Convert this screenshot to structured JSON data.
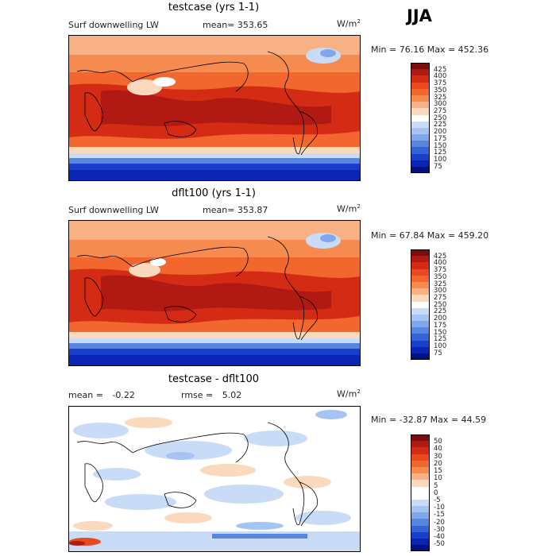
{
  "season": "JJA",
  "unit_base": "W/m",
  "unit_exp": "2",
  "panels": [
    {
      "title": "testcase (yrs 1-1)",
      "left_label": "Surf downwelling LW",
      "stat_label": "mean=",
      "stat_value": "353.65",
      "minmax": "Min =  76.16 Max = 452.36",
      "colorbar": {
        "colors": [
          "#7a0d0d",
          "#b11a12",
          "#d42c14",
          "#e8491d",
          "#f1672d",
          "#f58b4f",
          "#f8b184",
          "#fbd9bc",
          "#ffffff",
          "#c9dcf7",
          "#a6c4f2",
          "#80a7ea",
          "#5885df",
          "#3363d5",
          "#1b3fca",
          "#0a24b6",
          "#03107f"
        ],
        "labels": [
          "425",
          "400",
          "375",
          "350",
          "325",
          "300",
          "275",
          "250",
          "225",
          "200",
          "175",
          "150",
          "125",
          "100",
          "75"
        ]
      }
    },
    {
      "title": "dflt100 (yrs 1-1)",
      "left_label": "Surf downwelling LW",
      "stat_label": "mean=",
      "stat_value": "353.87",
      "minmax": "Min =  67.84 Max = 459.20",
      "colorbar": {
        "colors": [
          "#7a0d0d",
          "#b11a12",
          "#d42c14",
          "#e8491d",
          "#f1672d",
          "#f58b4f",
          "#f8b184",
          "#fbd9bc",
          "#ffffff",
          "#c9dcf7",
          "#a6c4f2",
          "#80a7ea",
          "#5885df",
          "#3363d5",
          "#1b3fca",
          "#0a24b6",
          "#03107f"
        ],
        "labels": [
          "425",
          "400",
          "375",
          "350",
          "325",
          "300",
          "275",
          "250",
          "225",
          "200",
          "175",
          "150",
          "125",
          "100",
          "75"
        ]
      }
    },
    {
      "title": "testcase - dflt100",
      "mean_label": "mean =",
      "mean_value": "-0.22",
      "rmse_label": "rmse =",
      "rmse_value": "5.02",
      "minmax": "Min = -32.87 Max =  44.59",
      "colorbar": {
        "colors": [
          "#7a0d0d",
          "#b11a12",
          "#d42c14",
          "#e8491d",
          "#f1672d",
          "#f58b4f",
          "#f8b184",
          "#fbd9bc",
          "#ffffff",
          "#ffffff",
          "#c9dcf7",
          "#a6c4f2",
          "#80a7ea",
          "#5885df",
          "#3363d5",
          "#1b3fca",
          "#0a24b6",
          "#03107f"
        ],
        "labels": [
          "50",
          "40",
          "30",
          "20",
          "15",
          "10",
          "5",
          "0",
          "-5",
          "-10",
          "-15",
          "-20",
          "-30",
          "-40",
          "-50"
        ]
      }
    }
  ]
}
